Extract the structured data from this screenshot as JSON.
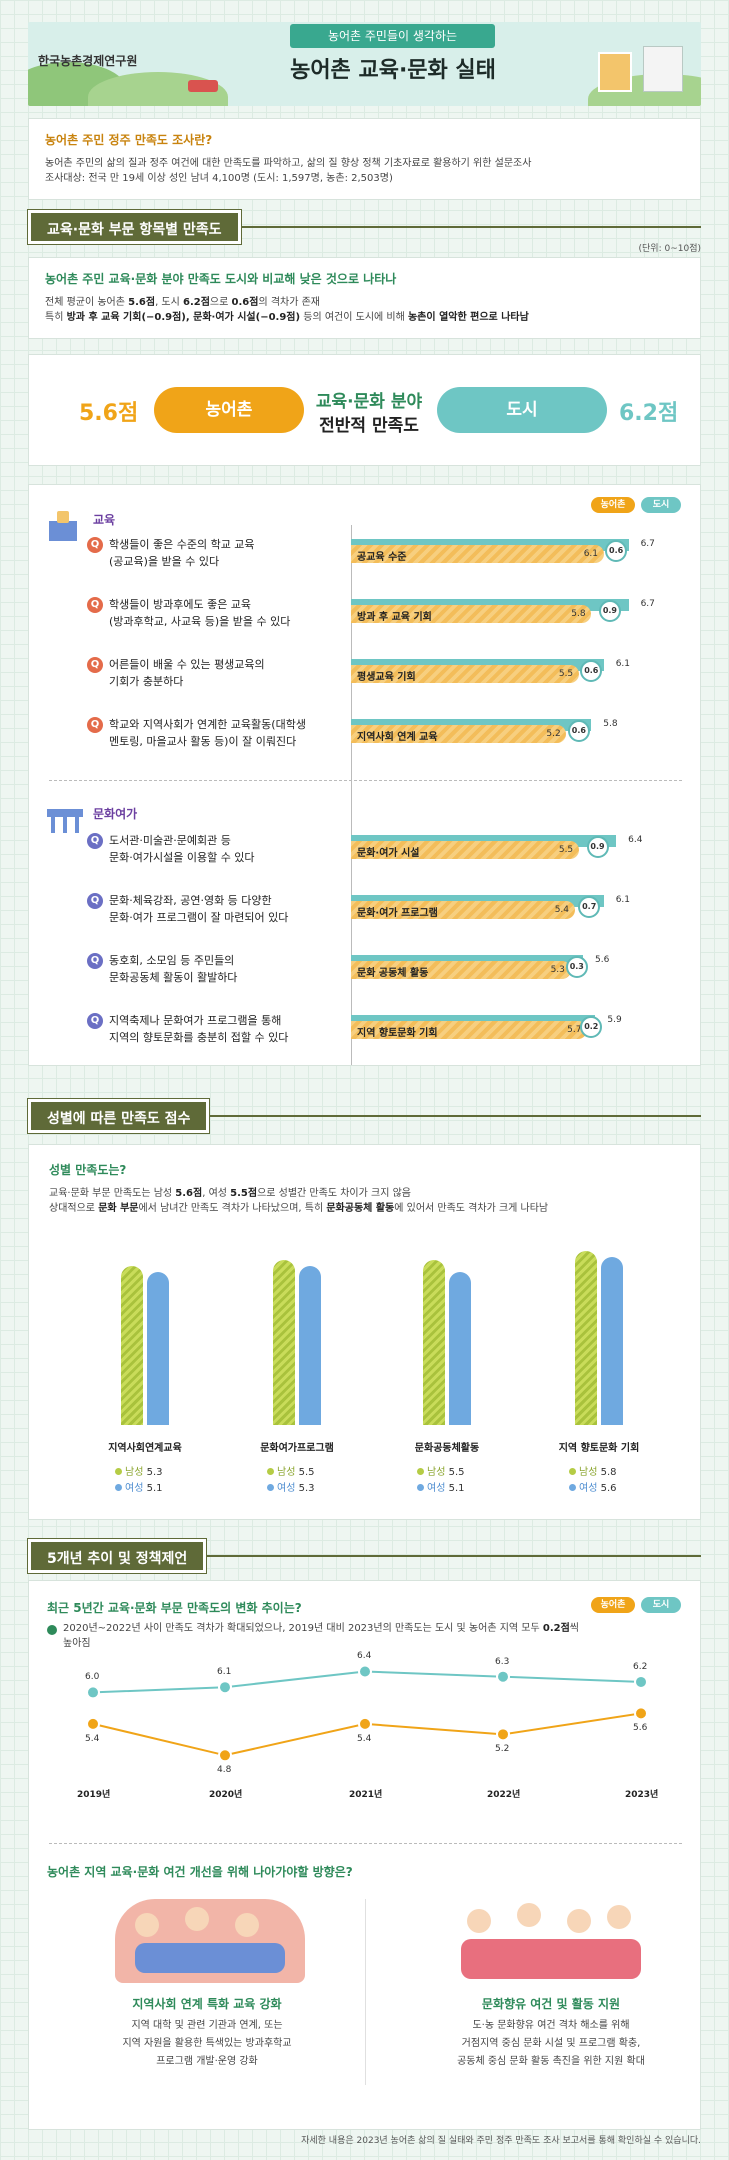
{
  "header": {
    "org_name": "한국농촌경제연구원",
    "subtitle": "농어촌 주민들이 생각하는",
    "title": "농어촌 교육·문화 실태"
  },
  "intro": {
    "title": "농어촌 주민 정주 만족도 조사란?",
    "line1": "농어촌 주민의 삶의 질과 정주 여건에 대한 만족도를 파악하고, 삶의 질 향상 정책 기초자료로 활용하기 위한 설문조사",
    "line2": "조사대상: 전국 만 19세 이상 성인 남녀 4,100명 (도시: 1,597명, 농촌: 2,503명)"
  },
  "section1": {
    "banner": "교육·문화 부문 항목별 만족도",
    "unit": "(단위: 0~10점)",
    "summary_title": "농어촌 주민 교육·문화 분야 만족도 도시와 비교해 낮은 것으로 나타나",
    "summary_l1a": "전체 평균이 농어촌 ",
    "summary_l1b": "5.6점",
    "summary_l1c": ", 도시 ",
    "summary_l1d": "6.2점",
    "summary_l1e": "으로 ",
    "summary_l1f": "0.6점",
    "summary_l1g": "의 격차가 존재",
    "summary_l2a": "특히 ",
    "summary_l2b": "방과 후 교육 기회(−0.9점), 문화·여가 시설(−0.9점)",
    "summary_l2c": " 등의 여건이 도시에 비해 ",
    "summary_l2d": "농촌이 열악한 편으로 나타남"
  },
  "overall": {
    "rural_score": "5.6점",
    "rural_label": "농어촌",
    "center_l1": "교육·문화 분야",
    "center_l2": "전반적 만족도",
    "city_label": "도시",
    "city_score": "6.2점"
  },
  "legend": {
    "rural": "농어촌",
    "city": "도시"
  },
  "colors": {
    "rural": "#f0a418",
    "city": "#6ec6c4",
    "male": "#b5cc45",
    "female": "#6fa9e0"
  },
  "education": {
    "label": "교육",
    "items": [
      {
        "q1": "학생들이 좋은 수준의 학교 교육",
        "q2": "(공교육)을 받을 수 있다",
        "bar": "공교육 수준",
        "rural": 6.1,
        "city": 6.7,
        "gap": "0.6",
        "rural_text": "6.1",
        "city_text": "6.7"
      },
      {
        "q1": "학생들이 방과후에도 좋은 교육",
        "q2": "(방과후학교, 사교육 등)을 받을 수 있다",
        "bar": "방과 후 교육 기회",
        "rural": 5.8,
        "city": 6.7,
        "gap": "0.9",
        "rural_text": "5.8",
        "city_text": "6.7"
      },
      {
        "q1": "어른들이 배울 수 있는 평생교육의",
        "q2": "기회가 충분하다",
        "bar": "평생교육 기회",
        "rural": 5.5,
        "city": 6.1,
        "gap": "0.6",
        "rural_text": "5.5",
        "city_text": "6.1"
      },
      {
        "q1": "학교와 지역사회가 연계한 교육활동(대학생",
        "q2": "멘토링, 마을교사 활동 등)이 잘 이뤄진다",
        "bar": "지역사회 연계 교육",
        "rural": 5.2,
        "city": 5.8,
        "gap": "0.6",
        "rural_text": "5.2",
        "city_text": "5.8"
      }
    ]
  },
  "culture": {
    "label": "문화여가",
    "items": [
      {
        "q1": "도서관·미술관·문예회관 등",
        "q2": "문화·여가시설을 이용할 수 있다",
        "bar": "문화·여가 시설",
        "rural": 5.5,
        "city": 6.4,
        "gap": "0.9",
        "rural_text": "5.5",
        "city_text": "6.4"
      },
      {
        "q1": "문화·체육강좌, 공연·영화 등 다양한",
        "q2": "문화·여가 프로그램이 잘 마련되어 있다",
        "bar": "문화·여가 프로그램",
        "rural": 5.4,
        "city": 6.1,
        "gap": "0.7",
        "rural_text": "5.4",
        "city_text": "6.1"
      },
      {
        "q1": "동호회, 소모임 등 주민들의",
        "q2": "문화공동체 활동이 활발하다",
        "bar": "문화 공동체 활동",
        "rural": 5.3,
        "city": 5.6,
        "gap": "0.3",
        "rural_text": "5.3",
        "city_text": "5.6"
      },
      {
        "q1": "지역축제나 문화여가 프로그램을 통해",
        "q2": "지역의 향토문화를 충분히 접할 수 있다",
        "bar": "지역 향토문화 기회",
        "rural": 5.7,
        "city": 5.9,
        "gap": "0.2",
        "rural_text": "5.7",
        "city_text": "5.9"
      }
    ]
  },
  "section2": {
    "banner": "성별에 따른 만족도 점수",
    "title": "성별 만족도는?",
    "l1a": "교육·문화 부문 만족도는 남성 ",
    "l1b": "5.6점",
    "l1c": ", 여성 ",
    "l1d": "5.5점",
    "l1e": "으로 성별간 만족도 차이가 크지 않음",
    "l2a": "상대적으로 ",
    "l2b": "문화 부문",
    "l2c": "에서 남녀간 만족도 격차가 나타났으며, 특히 ",
    "l2d": "문화공동체 활동",
    "l2e": "에 있어서 만족도 격차가 크게 나타남",
    "male_label": "남성",
    "female_label": "여성",
    "groups": [
      {
        "name": "지역사회연계교육",
        "male": 5.3,
        "female": 5.1,
        "male_text": "5.3",
        "female_text": "5.1"
      },
      {
        "name": "문화여가프로그램",
        "male": 5.5,
        "female": 5.3,
        "male_text": "5.5",
        "female_text": "5.3"
      },
      {
        "name": "문화공동체활동",
        "male": 5.5,
        "female": 5.1,
        "male_text": "5.5",
        "female_text": "5.1"
      },
      {
        "name": "지역 향토문화 기회",
        "male": 5.8,
        "female": 5.6,
        "male_text": "5.8",
        "female_text": "5.6"
      }
    ]
  },
  "section3": {
    "banner": "5개년 추이 및 정책제언",
    "title": "최근 5년간 교육·문화 부문 만족도의 변화 추이는?",
    "note_l1a": "2020년~2022년 사이 만족도 격차가 확대되었으나, 2019년 대비 2023년의 만족도는 도시 및 농어촌 지역 모두 ",
    "note_l1b": "0.2점",
    "note_l1c": "씩",
    "note_l2": "높아짐",
    "policy_title": "농어촌 지역 교육·문화 여건 개선을 위해 나아가야할 방향은?",
    "left_title": "지역사회 연계 특화 교육 강화",
    "left_l1": "지역 대학 및 관련 기관과 연계, 또는",
    "left_l2": "지역 자원을 활용한 특색있는 방과후학교",
    "left_l3": "프로그램 개발·운영 강화",
    "right_title": "문화향유 여건 및 활동 지원",
    "right_l1": "도·농 문화향유 여건 격차 해소를 위해",
    "right_l2": "거점지역 중심 문화 시설 및 프로그램 확충,",
    "right_l3": "공동체 중심 문화 활동 촉진을 위한 지원 확대"
  },
  "chart_data": {
    "type": "line",
    "x": [
      "2019년",
      "2020년",
      "2021년",
      "2022년",
      "2023년"
    ],
    "series": [
      {
        "name": "도시",
        "values": [
          6.0,
          6.1,
          6.4,
          6.3,
          6.2
        ],
        "labels": [
          "6.0",
          "6.1",
          "6.4",
          "6.3",
          "6.2"
        ]
      },
      {
        "name": "농어촌",
        "values": [
          5.4,
          4.8,
          5.4,
          5.2,
          5.6
        ],
        "labels": [
          "5.4",
          "4.8",
          "5.4",
          "5.2",
          "5.6"
        ]
      }
    ]
  },
  "footnote": "자세한 내용은 2023년 농어촌 삶의 질 실태와 주민 정주 만족도 조사 보고서를 통해 확인하실 수 있습니다."
}
